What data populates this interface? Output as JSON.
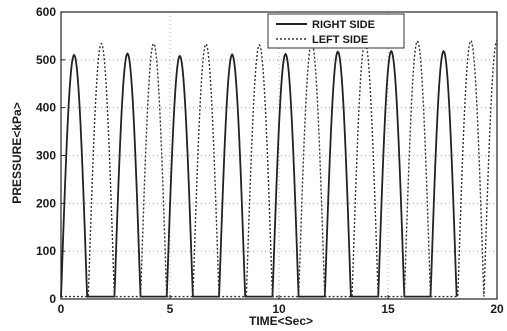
{
  "chart_data": {
    "type": "line",
    "title": "",
    "xlabel": "TIME<Sec>",
    "ylabel": "PRESSURE<kPa>",
    "xlim": [
      0,
      20
    ],
    "ylim": [
      0,
      600
    ],
    "xticks": [
      0,
      5,
      10,
      15,
      20
    ],
    "yticks": [
      0,
      100,
      200,
      300,
      400,
      500,
      600
    ],
    "grid": true,
    "legend": {
      "placement": "top-right",
      "entries": [
        "RIGHT SIDE",
        "LEFT SIDE"
      ]
    },
    "series": [
      {
        "name": "RIGHT SIDE",
        "style": "solid",
        "color": "#222222",
        "baseline": 5,
        "peaks": [
          {
            "start": 0.0,
            "end": 1.2,
            "peak": 510
          },
          {
            "start": 2.45,
            "end": 3.65,
            "peak": 513
          },
          {
            "start": 4.85,
            "end": 6.05,
            "peak": 508
          },
          {
            "start": 7.25,
            "end": 8.45,
            "peak": 511
          },
          {
            "start": 9.7,
            "end": 10.9,
            "peak": 512
          },
          {
            "start": 12.1,
            "end": 13.3,
            "peak": 517
          },
          {
            "start": 14.55,
            "end": 15.75,
            "peak": 518
          },
          {
            "start": 16.95,
            "end": 18.15,
            "peak": 518
          }
        ]
      },
      {
        "name": "LEFT SIDE",
        "style": "dashed",
        "color": "#333333",
        "baseline": 5,
        "peaks": [
          {
            "start": 1.25,
            "end": 2.45,
            "peak": 534
          },
          {
            "start": 3.65,
            "end": 4.85,
            "peak": 534
          },
          {
            "start": 6.05,
            "end": 7.25,
            "peak": 533
          },
          {
            "start": 8.5,
            "end": 9.7,
            "peak": 531
          },
          {
            "start": 10.9,
            "end": 12.1,
            "peak": 536
          },
          {
            "start": 13.35,
            "end": 14.55,
            "peak": 537
          },
          {
            "start": 15.75,
            "end": 16.95,
            "peak": 539
          },
          {
            "start": 18.2,
            "end": 19.4,
            "peak": 540
          },
          {
            "start": 19.4,
            "end": 20.6,
            "peak": 540
          }
        ]
      }
    ]
  }
}
